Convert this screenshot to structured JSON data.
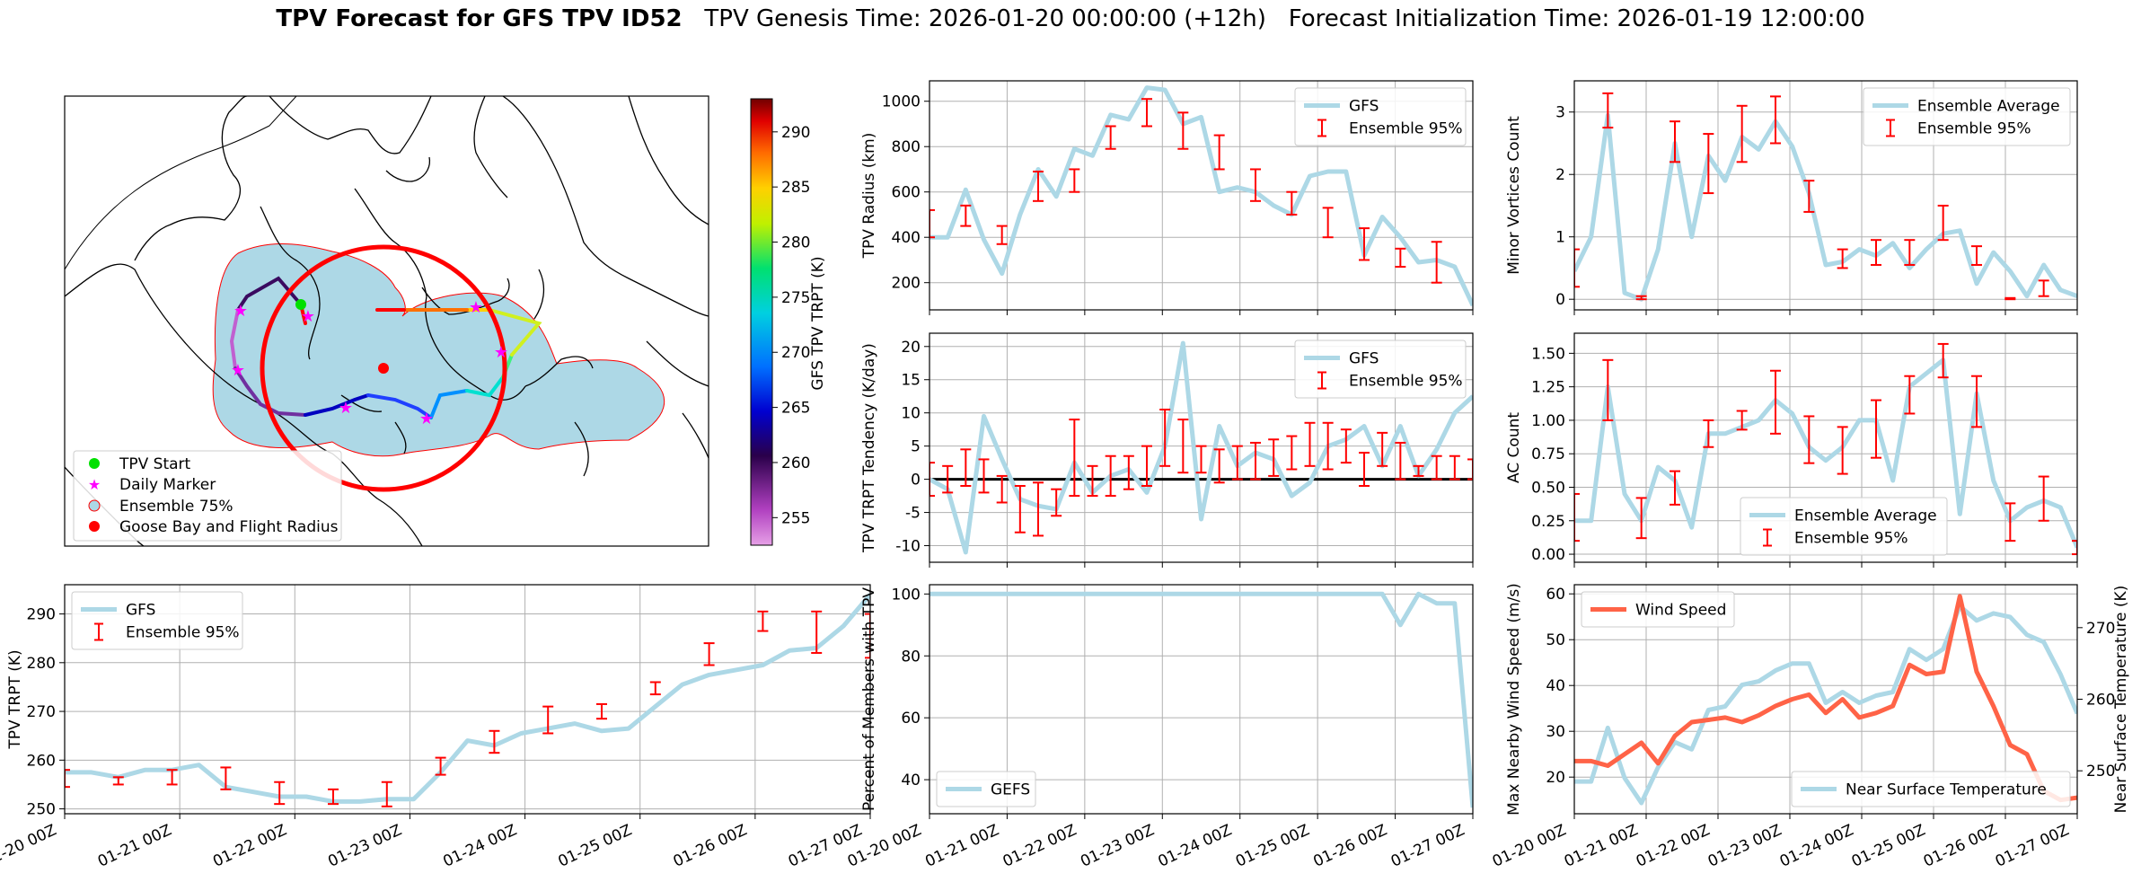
{
  "title": {
    "bold": "TPV Forecast for GFS TPV ID52",
    "genesis": "TPV Genesis Time: 2026-01-20 00:00:00 (+12h)",
    "init": "Forecast Initialization Time: 2026-01-19 12:00:00"
  },
  "colors": {
    "gfs": "#add8e6",
    "ens": "#ff0000",
    "wind": "#ff6347",
    "temp_axis": "#4169e1"
  },
  "time_ticks": [
    "01-20 00Z",
    "01-21 00Z",
    "01-22 00Z",
    "01-23 00Z",
    "01-24 00Z",
    "01-25 00Z",
    "01-26 00Z",
    "01-27 00Z"
  ],
  "chart_data": [
    {
      "id": "map",
      "type": "map",
      "legend": [
        "TPV Start",
        "Daily Marker",
        "Ensemble 75%",
        "Goose Bay and Flight Radius"
      ],
      "colorbar": {
        "label": "GFS TPV TRPT (K)",
        "ticks": [
          255,
          260,
          265,
          270,
          275,
          280,
          285,
          290
        ],
        "range": [
          252.5,
          293
        ]
      }
    },
    {
      "id": "radius",
      "type": "line",
      "ylabel": "TPV Radius (km)",
      "xlim": [
        0,
        28
      ],
      "ylim": [
        80,
        1090
      ],
      "yticks": [
        200,
        400,
        600,
        800,
        1000
      ],
      "legend": [
        "GFS",
        "Ensemble 95%"
      ],
      "legend_loc": "upper right",
      "gfs": [
        400,
        400,
        610,
        390,
        240,
        500,
        700,
        580,
        790,
        760,
        940,
        920,
        1060,
        1050,
        900,
        930,
        600,
        620,
        600,
        540,
        500,
        670,
        690,
        690,
        320,
        490,
        400,
        290,
        300,
        270,
        100
      ],
      "ens": [
        [
          0,
          400,
          520
        ],
        [
          2,
          450,
          540
        ],
        [
          4,
          370,
          450
        ],
        [
          6,
          560,
          690
        ],
        [
          8,
          600,
          700
        ],
        [
          10,
          790,
          890
        ],
        [
          12,
          890,
          1010
        ],
        [
          14,
          790,
          950
        ],
        [
          16,
          700,
          850
        ],
        [
          18,
          560,
          700
        ],
        [
          20,
          500,
          600
        ],
        [
          22,
          400,
          530
        ],
        [
          24,
          300,
          440
        ],
        [
          26,
          270,
          350
        ],
        [
          28,
          200,
          380
        ]
      ]
    },
    {
      "id": "minor",
      "type": "line",
      "ylabel": "Minor Vortices Count",
      "xlim": [
        0,
        28
      ],
      "ylim": [
        -0.17,
        3.5
      ],
      "yticks": [
        0,
        1,
        2,
        3
      ],
      "legend": [
        "Ensemble Average",
        "Ensemble 95%"
      ],
      "legend_loc": "upper right",
      "gfs": [
        0.45,
        1.0,
        2.95,
        0.1,
        0.0,
        0.8,
        2.5,
        1.0,
        2.3,
        1.9,
        2.6,
        2.4,
        2.85,
        2.45,
        1.7,
        0.55,
        0.6,
        0.8,
        0.7,
        0.9,
        0.5,
        0.8,
        1.05,
        1.1,
        0.25,
        0.75,
        0.45,
        0.05,
        0.55,
        0.15,
        0.05
      ],
      "ens": [
        [
          0,
          0.2,
          0.8
        ],
        [
          2,
          2.75,
          3.3
        ],
        [
          4,
          0.0,
          0.05
        ],
        [
          6,
          2.2,
          2.85
        ],
        [
          8,
          1.7,
          2.65
        ],
        [
          10,
          2.2,
          3.1
        ],
        [
          12,
          2.5,
          3.25
        ],
        [
          14,
          1.4,
          1.9
        ],
        [
          16,
          0.5,
          0.8
        ],
        [
          18,
          0.55,
          0.95
        ],
        [
          20,
          0.55,
          0.95
        ],
        [
          22,
          0.95,
          1.5
        ],
        [
          24,
          0.55,
          0.85
        ],
        [
          26,
          0.0,
          0.02
        ],
        [
          28,
          0.05,
          0.3
        ]
      ]
    },
    {
      "id": "tend",
      "type": "line",
      "ylabel": "TPV TRPT Tendency (K/day)",
      "xlim": [
        0,
        28
      ],
      "ylim": [
        -12.5,
        22
      ],
      "yticks": [
        -10,
        -5,
        0,
        5,
        10,
        15,
        20
      ],
      "legend": [
        "GFS",
        "Ensemble 95%"
      ],
      "legend_loc": "upper right",
      "zero_line": true,
      "gfs": [
        0,
        -1.5,
        -11,
        9.5,
        3,
        -3,
        -4,
        -4.5,
        2.5,
        -2,
        0.5,
        1.5,
        -2,
        5,
        20.5,
        -6,
        8,
        2,
        4,
        3,
        -2.5,
        -0.5,
        5,
        6,
        8,
        2,
        8,
        0.5,
        4.5,
        10,
        12.5
      ],
      "ens": [
        [
          0,
          -2.5,
          2.5
        ],
        [
          1,
          -2,
          2
        ],
        [
          2,
          -1,
          4.5
        ],
        [
          3,
          -2,
          3
        ],
        [
          4,
          -3.5,
          0.5
        ],
        [
          5,
          -8,
          -1
        ],
        [
          6,
          -8.5,
          -0.5
        ],
        [
          7,
          -5.5,
          -1.5
        ],
        [
          8,
          -2.5,
          9
        ],
        [
          9,
          -2.5,
          2
        ],
        [
          10,
          -2.5,
          3.5
        ],
        [
          11,
          -1.5,
          3.5
        ],
        [
          12,
          -1,
          5
        ],
        [
          13,
          2,
          10.5
        ],
        [
          14,
          1,
          9
        ],
        [
          15,
          1,
          5
        ],
        [
          16,
          -0.5,
          4.5
        ],
        [
          17,
          0,
          5
        ],
        [
          18,
          0,
          5.5
        ],
        [
          19,
          0.5,
          6
        ],
        [
          20,
          1.5,
          6.5
        ],
        [
          21,
          2,
          8.5
        ],
        [
          22,
          1.5,
          8.5
        ],
        [
          23,
          2.5,
          7.5
        ],
        [
          24,
          -1,
          4
        ],
        [
          25,
          2,
          7
        ],
        [
          26,
          0,
          5.5
        ],
        [
          27,
          0.5,
          2
        ],
        [
          28,
          0,
          3.5
        ],
        [
          29,
          0,
          3.5
        ],
        [
          30,
          0,
          3
        ]
      ]
    },
    {
      "id": "ac",
      "type": "line",
      "ylabel": "AC Count",
      "xlim": [
        0,
        28
      ],
      "ylim": [
        -0.06,
        1.65
      ],
      "yticks": [
        0,
        0.25,
        0.5,
        0.75,
        1.0,
        1.25,
        1.5
      ],
      "ytick_labels": [
        "0.00",
        "0.25",
        "0.50",
        "0.75",
        "1.00",
        "1.25",
        "1.50"
      ],
      "legend": [
        "Ensemble Average",
        "Ensemble 95%"
      ],
      "legend_loc": "lower center",
      "gfs": [
        0.25,
        0.25,
        1.25,
        0.45,
        0.25,
        0.65,
        0.55,
        0.2,
        0.9,
        0.9,
        0.95,
        1.0,
        1.15,
        1.05,
        0.8,
        0.7,
        0.8,
        1.0,
        1.0,
        0.55,
        1.25,
        1.35,
        1.45,
        0.3,
        1.2,
        0.55,
        0.25,
        0.35,
        0.4,
        0.35,
        0.05
      ],
      "ens": [
        [
          0,
          0.1,
          0.45
        ],
        [
          2,
          1.0,
          1.45
        ],
        [
          4,
          0.12,
          0.42
        ],
        [
          6,
          0.37,
          0.62
        ],
        [
          8,
          0.8,
          1.0
        ],
        [
          10,
          0.93,
          1.07
        ],
        [
          12,
          0.9,
          1.37
        ],
        [
          14,
          0.68,
          1.03
        ],
        [
          16,
          0.6,
          0.95
        ],
        [
          18,
          0.72,
          1.15
        ],
        [
          20,
          1.05,
          1.33
        ],
        [
          22,
          1.32,
          1.57
        ],
        [
          24,
          0.95,
          1.33
        ],
        [
          26,
          0.1,
          0.38
        ],
        [
          28,
          0.25,
          0.58
        ],
        [
          30,
          0.0,
          0.1
        ]
      ]
    },
    {
      "id": "trpt",
      "type": "line",
      "ylabel": "TPV TRPT (K)",
      "xlim": [
        0,
        28
      ],
      "ylim": [
        249,
        296
      ],
      "yticks": [
        250,
        260,
        270,
        280,
        290
      ],
      "legend": [
        "GFS",
        "Ensemble 95%"
      ],
      "legend_loc": "upper left",
      "gfs": [
        257.5,
        257.5,
        256.5,
        258,
        258,
        259,
        254.5,
        253.5,
        252.5,
        252.5,
        251.5,
        251.5,
        252,
        252,
        257.5,
        264,
        263,
        265.5,
        266.5,
        267.5,
        266,
        266.5,
        271,
        275.5,
        277.5,
        278.5,
        279.5,
        282.5,
        283,
        287.5,
        294
      ],
      "ens": [
        [
          0,
          254.5,
          258
        ],
        [
          2,
          255,
          256.5
        ],
        [
          4,
          255,
          258
        ],
        [
          6,
          254,
          258.5
        ],
        [
          8,
          251,
          255.5
        ],
        [
          10,
          251,
          254
        ],
        [
          12,
          250.5,
          255.5
        ],
        [
          14,
          257,
          260.5
        ],
        [
          16,
          261.5,
          266
        ],
        [
          18,
          265.5,
          271
        ],
        [
          20,
          268.5,
          271.5
        ],
        [
          22,
          273.5,
          276
        ],
        [
          24,
          279.5,
          284
        ],
        [
          26,
          286.5,
          290.5
        ],
        [
          28,
          282,
          290.5
        ],
        [
          30,
          281,
          290
        ]
      ]
    },
    {
      "id": "percent",
      "type": "line",
      "ylabel": "Percent of Members with TPV",
      "xlim": [
        0,
        28
      ],
      "ylim": [
        29,
        103
      ],
      "yticks": [
        40,
        60,
        80,
        100
      ],
      "legend": [
        "GEFS"
      ],
      "legend_loc": "lower left",
      "gfs": [
        100,
        100,
        100,
        100,
        100,
        100,
        100,
        100,
        100,
        100,
        100,
        100,
        100,
        100,
        100,
        100,
        100,
        100,
        100,
        100,
        100,
        100,
        100,
        100,
        100,
        100,
        90,
        100,
        97,
        97,
        31
      ]
    },
    {
      "id": "wind",
      "type": "dual_line",
      "ylabel": "Max Nearby Wind Speed (m/s)",
      "ylabel2": "Near Surface Temperature (K)",
      "xlim": [
        0,
        28
      ],
      "ylim": [
        12,
        62
      ],
      "ylim2": [
        244,
        276
      ],
      "yticks": [
        20,
        30,
        40,
        50,
        60
      ],
      "yticks2": [
        250,
        260,
        270
      ],
      "legend": [
        "Wind Speed"
      ],
      "legend2": [
        "Near Surface Temperature"
      ],
      "wind": [
        23.5,
        23.5,
        22.5,
        25,
        27.5,
        23,
        29,
        32,
        32.5,
        33,
        32,
        33.5,
        35.5,
        37,
        38,
        34,
        37,
        33,
        34,
        35.5,
        44.5,
        42.5,
        43,
        59.5,
        43,
        35.5,
        27,
        25,
        17,
        15,
        15.5
      ],
      "temp": [
        248.5,
        248.5,
        256,
        249,
        245.5,
        250.5,
        254,
        253,
        258.5,
        259,
        262,
        262.5,
        264,
        265,
        265,
        259.5,
        261,
        259.5,
        260.5,
        261,
        267,
        265.5,
        267,
        273,
        271,
        272,
        271.5,
        269,
        268,
        263.5,
        258
      ]
    }
  ]
}
